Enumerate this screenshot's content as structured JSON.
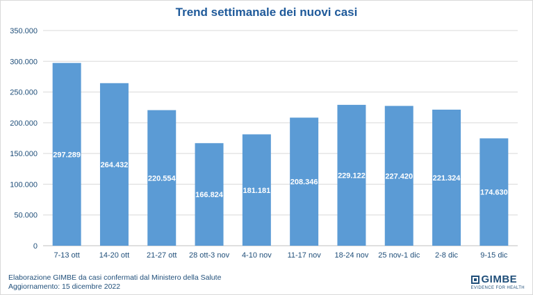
{
  "chart_data": {
    "type": "bar",
    "title": "Trend settimanale dei nuovi casi",
    "categories": [
      "7-13 ott",
      "14-20 ott",
      "21-27 ott",
      "28 ott-3 nov",
      "4-10 nov",
      "11-17 nov",
      "18-24 nov",
      "25 nov-1 dic",
      "2-8 dic",
      "9-15 dic"
    ],
    "values": [
      297289,
      264432,
      220554,
      166824,
      181181,
      208346,
      229122,
      227420,
      221324,
      174630
    ],
    "value_labels": [
      "297.289",
      "264.432",
      "220.554",
      "166.824",
      "181.181",
      "208.346",
      "229.122",
      "227.420",
      "221.324",
      "174.630"
    ],
    "ylim": [
      0,
      350000
    ],
    "yticks": [
      0,
      50000,
      100000,
      150000,
      200000,
      250000,
      300000,
      350000
    ],
    "ytick_labels": [
      "0",
      "50.000",
      "100.000",
      "150.000",
      "200.000",
      "250.000",
      "300.000",
      "350.000"
    ],
    "grid": true,
    "bar_color": "#5b9bd5"
  },
  "footer": {
    "source": "Elaborazione GIMBE da casi confermati dal Ministero della Salute",
    "updated": "Aggiornamento: 15 dicembre 2022"
  },
  "logo": {
    "name": "GIMBE",
    "tagline": "EVIDENCE FOR HEALTH"
  }
}
